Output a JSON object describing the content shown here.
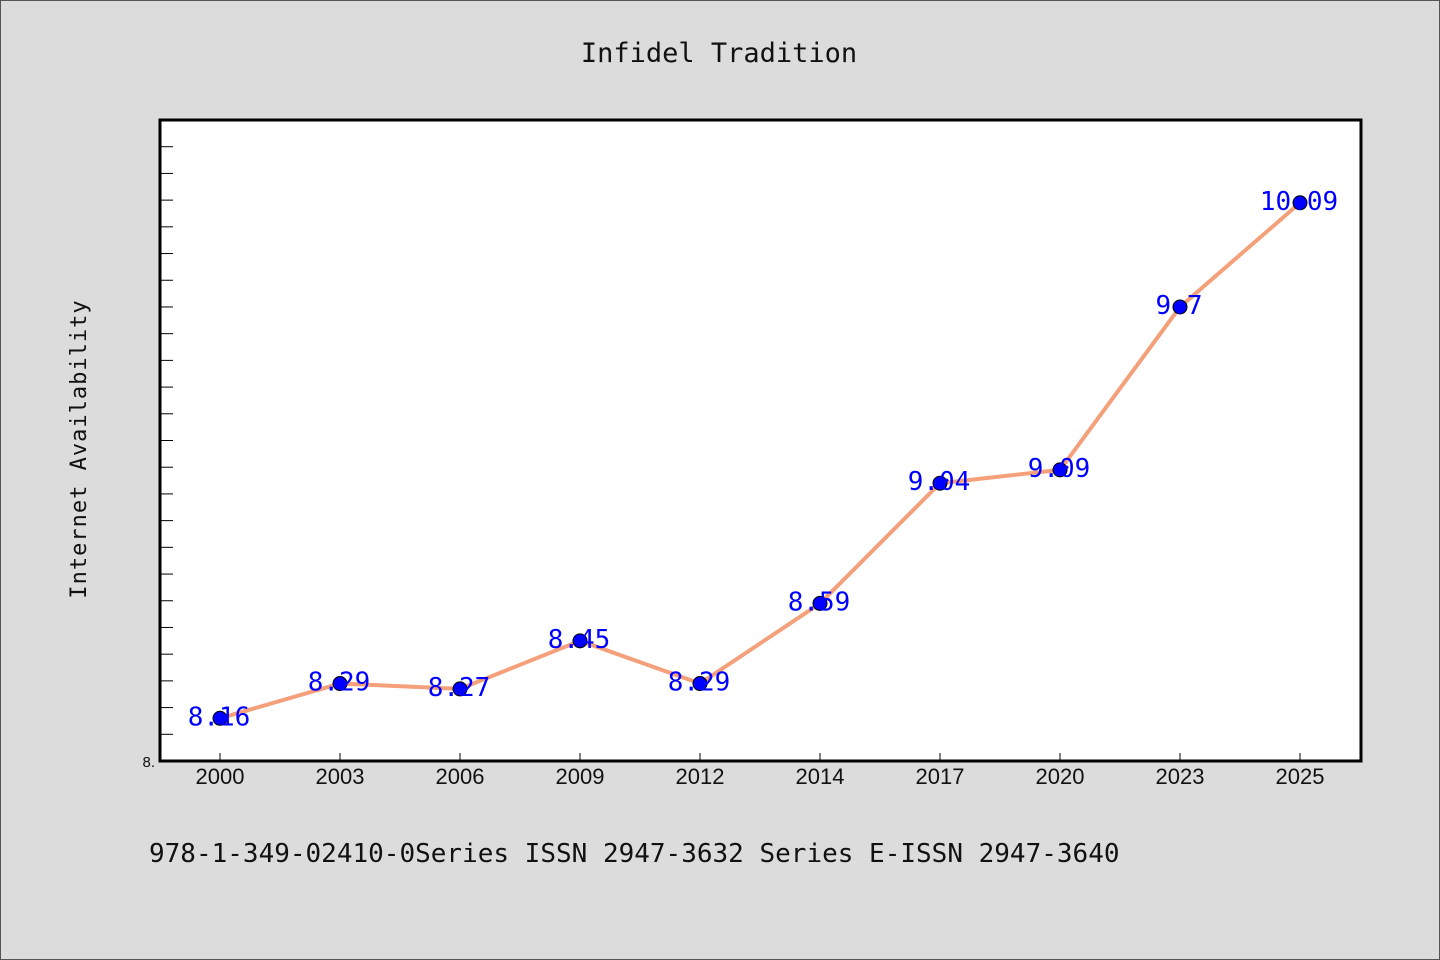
{
  "chart_data": {
    "type": "line",
    "title": "Infidel Tradition",
    "ylabel": "Internet Availability",
    "xlabel": "",
    "categories": [
      "2000",
      "2003",
      "2006",
      "2009",
      "2012",
      "2014",
      "2017",
      "2020",
      "2023",
      "2025"
    ],
    "series": [
      {
        "values": [
          8.16,
          8.29,
          8.27,
          8.45,
          8.29,
          8.59,
          9.04,
          9.09,
          9.7,
          10.09
        ],
        "data_labels": [
          "8.16",
          "8.29",
          "8.27",
          "8.45",
          "8.29",
          "8.59",
          "9.04",
          "9.09",
          "9.7",
          "10.09"
        ],
        "line_color": "#f4a07a",
        "marker_color": "#0000ff"
      }
    ],
    "ylim": [
      8.0,
      10.4
    ],
    "y_min_label": "8.",
    "grid": false,
    "legend": "none"
  },
  "footer": {
    "text": "978-1-349-02410-0Series ISSN 2947-3632 Series E-ISSN 2947-3640"
  },
  "colors": {
    "background": "#dcdcdc",
    "plot_background": "#ffffff",
    "line": "#f4a07a",
    "marker": "#0000ff",
    "data_label": "#0000ff"
  }
}
